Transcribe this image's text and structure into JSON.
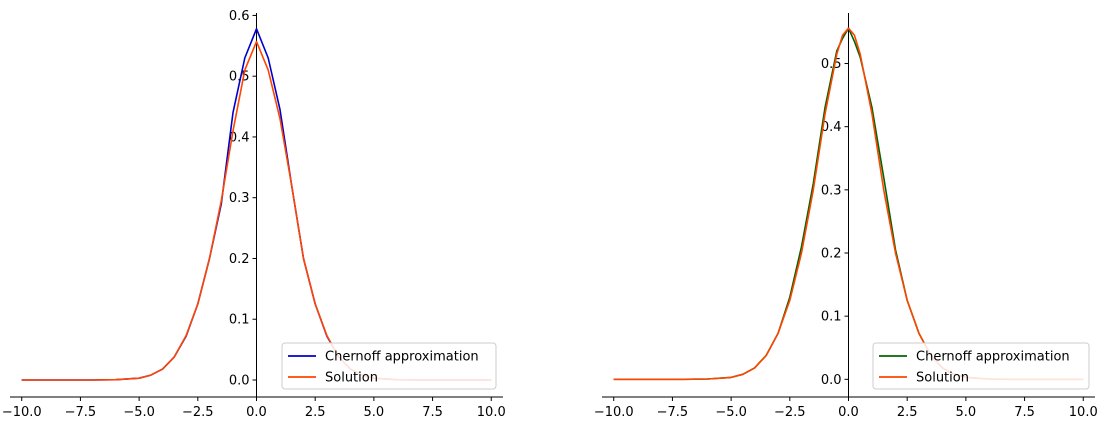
{
  "chart_data": [
    {
      "type": "line",
      "title": "",
      "xlabel": "",
      "ylabel": "",
      "xlim": [
        -10.5,
        10.5
      ],
      "ylim": [
        -0.028,
        0.604
      ],
      "x_ticks": [
        -10.0,
        -7.5,
        -5.0,
        -2.5,
        0.0,
        2.5,
        5.0,
        7.5,
        10.0
      ],
      "x_tick_labels": [
        "−10.0",
        "−7.5",
        "−5.0",
        "−2.5",
        "0.0",
        "2.5",
        "5.0",
        "7.5",
        "10.0"
      ],
      "y_ticks": [
        0.0,
        0.1,
        0.2,
        0.3,
        0.4,
        0.5,
        0.6
      ],
      "y_tick_labels": [
        "0.0",
        "0.1",
        "0.2",
        "0.3",
        "0.4",
        "0.5",
        "0.6"
      ],
      "spines": "x-axis at bottom, y-axis through x=0",
      "grid": false,
      "legend_position": "lower-right",
      "series": [
        {
          "name": "Chernoff approximation",
          "color": "#0000cc",
          "x": [
            -10,
            -9,
            -8,
            -7,
            -6,
            -5,
            -4.5,
            -4,
            -3.5,
            -3,
            -2.5,
            -2,
            -1.5,
            -1,
            -0.5,
            0,
            0.5,
            1,
            1.5,
            2,
            2.5,
            3,
            3.5,
            4,
            4.5,
            5,
            6,
            7,
            8,
            9,
            10
          ],
          "y": [
            0.0,
            0.0,
            0.0,
            0.0,
            0.0005,
            0.003,
            0.008,
            0.018,
            0.038,
            0.072,
            0.125,
            0.2,
            0.29,
            0.44,
            0.53,
            0.578,
            0.53,
            0.445,
            0.32,
            0.2,
            0.125,
            0.072,
            0.038,
            0.018,
            0.008,
            0.003,
            0.0005,
            0.0,
            0.0,
            0.0,
            0.0
          ]
        },
        {
          "name": "Solution",
          "color": "#ff4500",
          "x": [
            -10,
            -9,
            -8,
            -7,
            -6,
            -5,
            -4.5,
            -4,
            -3.5,
            -3,
            -2.5,
            -2,
            -1.5,
            -1,
            -0.5,
            0,
            0.5,
            1,
            1.5,
            2,
            2.5,
            3,
            3.5,
            4,
            4.5,
            5,
            6,
            7,
            8,
            9,
            10
          ],
          "y": [
            0.0,
            0.0,
            0.0,
            0.0,
            0.0005,
            0.003,
            0.008,
            0.018,
            0.038,
            0.073,
            0.125,
            0.2,
            0.295,
            0.41,
            0.51,
            0.557,
            0.51,
            0.43,
            0.32,
            0.2,
            0.125,
            0.073,
            0.038,
            0.018,
            0.008,
            0.003,
            0.0005,
            0.0,
            0.0,
            0.0,
            0.0
          ]
        }
      ]
    },
    {
      "type": "line",
      "title": "",
      "xlabel": "",
      "ylabel": "",
      "xlim": [
        -10.5,
        10.5
      ],
      "ylim": [
        -0.028,
        0.58
      ],
      "x_ticks": [
        -10.0,
        -7.5,
        -5.0,
        -2.5,
        0.0,
        2.5,
        5.0,
        7.5,
        10.0
      ],
      "x_tick_labels": [
        "−10.0",
        "−7.5",
        "−5.0",
        "−2.5",
        "0.0",
        "2.5",
        "5.0",
        "7.5",
        "10.0"
      ],
      "y_ticks": [
        0.0,
        0.1,
        0.2,
        0.3,
        0.4,
        0.5
      ],
      "y_tick_labels": [
        "0.0",
        "0.1",
        "0.2",
        "0.3",
        "0.4",
        "0.5"
      ],
      "spines": "x-axis at bottom, y-axis through x=0",
      "grid": false,
      "legend_position": "lower-right",
      "series": [
        {
          "name": "Chernoff approximation",
          "color": "#006400",
          "x": [
            -10,
            -9,
            -8,
            -7,
            -6,
            -5,
            -4.5,
            -4,
            -3.5,
            -3,
            -2.5,
            -2,
            -1.5,
            -1,
            -0.5,
            -0.25,
            0,
            0.25,
            0.5,
            1,
            1.5,
            2,
            2.5,
            3,
            3.5,
            4,
            4.5,
            5,
            6,
            7,
            8,
            9,
            10
          ],
          "y": [
            0.0,
            0.0,
            0.0,
            0.0,
            0.0005,
            0.003,
            0.008,
            0.018,
            0.038,
            0.073,
            0.13,
            0.21,
            0.31,
            0.43,
            0.52,
            0.54,
            0.556,
            0.535,
            0.51,
            0.43,
            0.32,
            0.205,
            0.125,
            0.073,
            0.038,
            0.018,
            0.008,
            0.003,
            0.0005,
            0.0,
            0.0,
            0.0,
            0.0
          ]
        },
        {
          "name": "Solution",
          "color": "#ff4500",
          "x": [
            -10,
            -9,
            -8,
            -7,
            -6,
            -5,
            -4.5,
            -4,
            -3.5,
            -3,
            -2.5,
            -2,
            -1.5,
            -1,
            -0.5,
            -0.25,
            0,
            0.25,
            0.5,
            1,
            1.5,
            2,
            2.5,
            3,
            3.5,
            4,
            4.5,
            5,
            6,
            7,
            8,
            9,
            10
          ],
          "y": [
            0.0,
            0.0,
            0.0,
            0.0,
            0.0005,
            0.003,
            0.008,
            0.018,
            0.038,
            0.073,
            0.125,
            0.2,
            0.3,
            0.42,
            0.515,
            0.545,
            0.556,
            0.545,
            0.515,
            0.42,
            0.3,
            0.2,
            0.125,
            0.073,
            0.038,
            0.018,
            0.008,
            0.003,
            0.0005,
            0.0,
            0.0,
            0.0,
            0.0
          ]
        }
      ]
    }
  ]
}
